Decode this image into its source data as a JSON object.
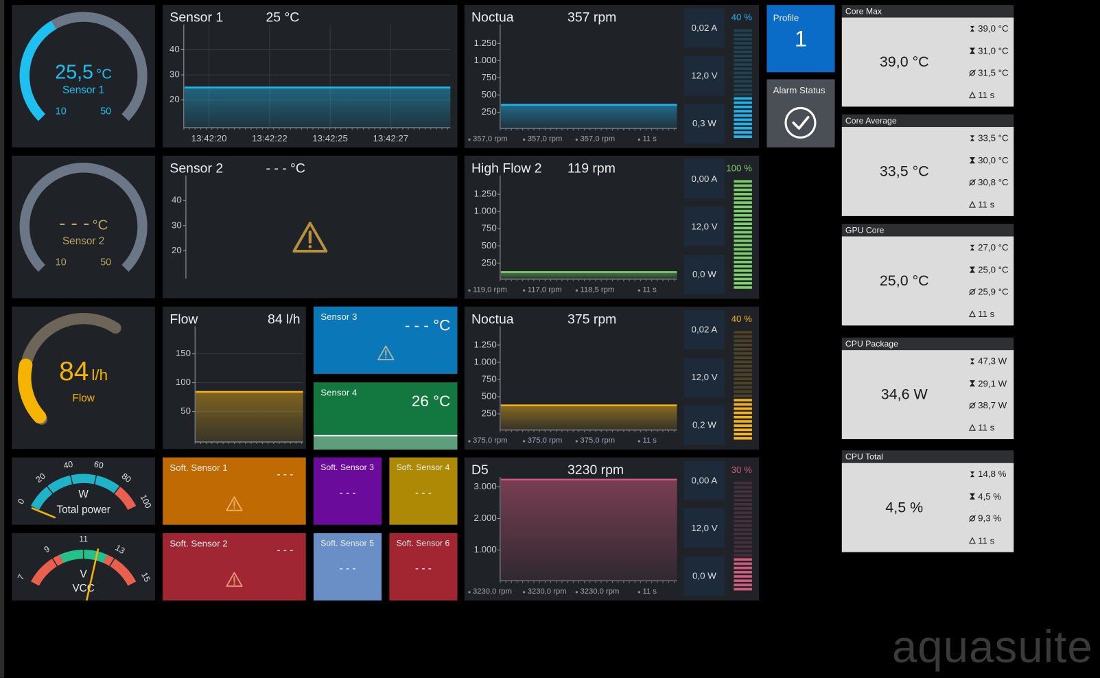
{
  "gauges": [
    {
      "value": {
        "value": 25.5,
        "label": "25,5"
      },
      "unit": "°C",
      "label": "Sensor 1",
      "min": 10,
      "max": 50,
      "color": "#1ec0f0"
    },
    {
      "value": "- - -",
      "unit": "°C",
      "label": "Sensor 2",
      "min": 10,
      "max": 50,
      "color": "#b9a263"
    },
    {
      "value": 84,
      "unit": "l/h",
      "label": "Flow",
      "color": "#f5b400"
    }
  ],
  "dials": [
    {
      "unit": "W",
      "label": "Total power",
      "ticks": [
        0,
        20,
        40,
        60,
        80,
        100
      ],
      "bands": [
        {
          "from": 0,
          "to": 80,
          "color": "#1eb3c8"
        },
        {
          "from": 80,
          "to": 100,
          "color": "#e9604e"
        }
      ]
    },
    {
      "unit": "V",
      "label": "VCC",
      "ticks": [
        7,
        9,
        11,
        13,
        15
      ],
      "bands": [
        {
          "from": 7,
          "to": 9.5,
          "color": "#e9604e"
        },
        {
          "from": 9.5,
          "to": 12.5,
          "color": "#26c08a"
        },
        {
          "from": 12.5,
          "to": 15,
          "color": "#e9604e"
        }
      ]
    }
  ],
  "charts": [
    {
      "title": "Sensor 1",
      "value": "25 °C",
      "ylim": [
        9,
        50
      ],
      "yticks": [
        20,
        30,
        40
      ],
      "level": 25,
      "color": "#1fb6e8",
      "xticks": [
        "13:42:20",
        "13:42:22",
        "13:42:25",
        "13:42:27"
      ]
    },
    {
      "title": "Sensor 2",
      "value": "- - - °C",
      "ylim": [
        9,
        50
      ],
      "yticks": [
        20,
        30,
        40
      ],
      "warning": true
    },
    {
      "title": "Flow",
      "value": "84 l/h",
      "ylim": [
        -3,
        198
      ],
      "yticks": [
        50,
        100,
        150
      ],
      "level": 84,
      "color": "#f4b21a"
    }
  ],
  "fans": [
    {
      "name": "Noctua",
      "rpm": "357 rpm",
      "current": "0,02 A",
      "voltage": "12,0 V",
      "power": "0,3 W",
      "percent": {
        "value": 40,
        "label": "40 %"
      },
      "stats": [
        "357,0 rpm",
        "357,0 rpm",
        "357,0 rpm",
        "11 s"
      ],
      "ylim": [
        15,
        1525
      ],
      "yticks": [
        250,
        500,
        750,
        {
          "value": 1000,
          "label": "1.000"
        },
        {
          "value": 1250,
          "label": "1.250"
        }
      ],
      "level": 357,
      "color": "#20b4ef"
    },
    {
      "name": "High Flow 2",
      "rpm": "119 rpm",
      "current": "0,00 A",
      "voltage": "12,0 V",
      "power": "0,0 W",
      "percent": {
        "value": 100,
        "label": "100 %"
      },
      "stats": [
        "119,0 rpm",
        "117,0 rpm",
        "118,5 rpm",
        "11 s"
      ],
      "ylim": [
        15,
        1525
      ],
      "yticks": [
        250,
        500,
        750,
        {
          "value": 1000,
          "label": "1.000"
        },
        {
          "value": 1250,
          "label": "1.250"
        }
      ],
      "level": 119,
      "color": "#7ccf6c"
    },
    {
      "name": "Noctua",
      "rpm": "375 rpm",
      "current": "0,02 A",
      "voltage": "12,0 V",
      "power": "0,2 W",
      "percent": {
        "value": 40,
        "label": "40 %"
      },
      "stats": [
        "375,0 rpm",
        "375,0 rpm",
        "375,0 rpm",
        "11 s"
      ],
      "ylim": [
        15,
        1525
      ],
      "yticks": [
        250,
        500,
        750,
        {
          "value": 1000,
          "label": "1.000"
        },
        {
          "value": 1250,
          "label": "1.250"
        }
      ],
      "level": 375,
      "color": "#f4b21a"
    },
    {
      "name": "D5",
      "rpm": "3230 rpm",
      "current": "0,00 A",
      "voltage": "12,0 V",
      "power": "0,0 W",
      "percent": {
        "value": 30,
        "label": "30 %"
      },
      "stats": [
        "3230,0 rpm",
        "3230,0 rpm",
        "3230,0 rpm",
        "11 s"
      ],
      "ylim": [
        22,
        3311
      ],
      "yticks": [
        {
          "value": 1000,
          "label": "1.000"
        },
        {
          "value": 2000,
          "label": "2.000"
        },
        {
          "value": 3000,
          "label": "3.000"
        }
      ],
      "level": 3230,
      "color": "#d05a7c"
    }
  ],
  "tiles": [
    {
      "title": "Sensor 3",
      "value": "- - - °C",
      "color": "#0a78b8",
      "warning": true
    },
    {
      "title": "Sensor 4",
      "value": "26 °C",
      "color": "#12783f"
    },
    {
      "title": "Soft. Sensor 1",
      "value": "- - -",
      "color": "#c06a04",
      "warning": true
    },
    {
      "title": "Soft. Sensor 2",
      "value": "- - -",
      "color": "#a02633",
      "warning": true
    },
    {
      "title": "Soft. Sensor 3",
      "value": "- - -",
      "color": "#6b0b9b"
    },
    {
      "title": "Soft. Sensor 4",
      "value": "- - -",
      "color": "#ae8906"
    },
    {
      "title": "Soft. Sensor 5",
      "value": "- - -",
      "color": "#6a8fc6"
    },
    {
      "title": "Soft. Sensor 6",
      "value": "- - -",
      "color": "#a22632"
    }
  ],
  "profile": {
    "label": "Profile",
    "value": "1"
  },
  "alarm": {
    "label": "Alarm Status"
  },
  "sensors": [
    {
      "name": "Core Max",
      "value": "39,0 °C",
      "max": "39,0 °C",
      "min": "31,0 °C",
      "avg": "31,5 °C",
      "age": "11 s"
    },
    {
      "name": "Core Average",
      "value": "33,5 °C",
      "max": "33,5 °C",
      "min": "30,0 °C",
      "avg": "30,8 °C",
      "age": "11 s"
    },
    {
      "name": "GPU Core",
      "value": "25,0 °C",
      "max": "27,0 °C",
      "min": "25,0 °C",
      "avg": "25,9 °C",
      "age": "11 s"
    },
    {
      "name": "CPU Package",
      "value": "34,6 W",
      "max": "47,3 W",
      "min": "29,1 W",
      "avg": "38,7 W",
      "age": "11 s"
    },
    {
      "name": "CPU Total",
      "value": "4,5 %",
      "max": "14,8 %",
      "min": "4,5 %",
      "avg": "9,3 %",
      "age": "11 s"
    }
  ],
  "brand": "aquasuite"
}
